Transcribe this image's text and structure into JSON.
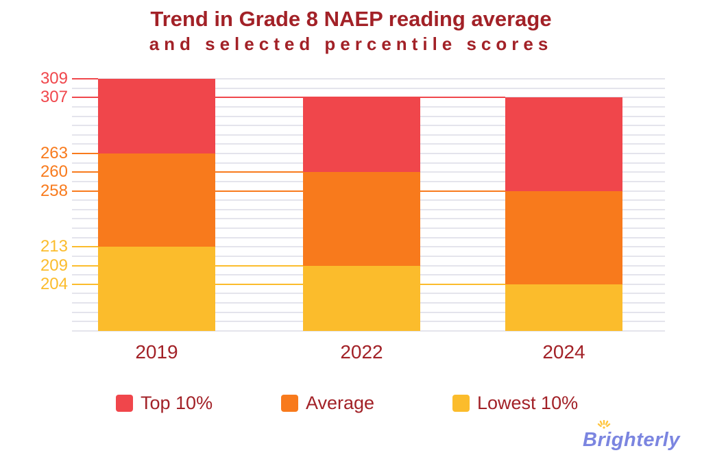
{
  "title": {
    "line1": "Trend in Grade 8 NAEP reading average",
    "line2": "and selected percentile scores"
  },
  "chart_data": {
    "type": "bar",
    "stacked": true,
    "title": "Trend in Grade 8 NAEP reading average and selected percentile scores",
    "categories": [
      "2019",
      "2022",
      "2024"
    ],
    "series": [
      {
        "name": "Top 10%",
        "color": "#F0464B",
        "values": [
          309,
          307,
          307
        ]
      },
      {
        "name": "Average",
        "color": "#F87A1C",
        "values": [
          263,
          260,
          258
        ]
      },
      {
        "name": "Lowest 10%",
        "color": "#FBBC2C",
        "values": [
          213,
          209,
          204
        ]
      }
    ],
    "y_axis": {
      "ticks": [
        {
          "value": 309,
          "color": "#F0464B"
        },
        {
          "value": 307,
          "color": "#F0464B"
        },
        {
          "value": 263,
          "color": "#F87A1C"
        },
        {
          "value": 260,
          "color": "#F87A1C"
        },
        {
          "value": 258,
          "color": "#F87A1C"
        },
        {
          "value": 213,
          "color": "#FBBC2C"
        },
        {
          "value": 209,
          "color": "#FBBC2C"
        },
        {
          "value": 204,
          "color": "#FBBC2C"
        }
      ]
    },
    "x_axis": {
      "labels": [
        "2019",
        "2022",
        "2024"
      ],
      "label_color": "#A22127"
    },
    "grid": true,
    "legend_position": "bottom"
  },
  "legend": {
    "items": [
      {
        "label": "Top 10%",
        "color": "#F0464B"
      },
      {
        "label": "Average",
        "color": "#F87A1C"
      },
      {
        "label": "Lowest 10%",
        "color": "#FBBC2C"
      }
    ]
  },
  "logo": {
    "text": "Brighterly",
    "text_color": "#7B85E0",
    "sun_color": "#FFC53D"
  },
  "colors": {
    "title_text": "#A22127",
    "gridline": "#E4E4EC",
    "background": "#FFFFFF"
  }
}
